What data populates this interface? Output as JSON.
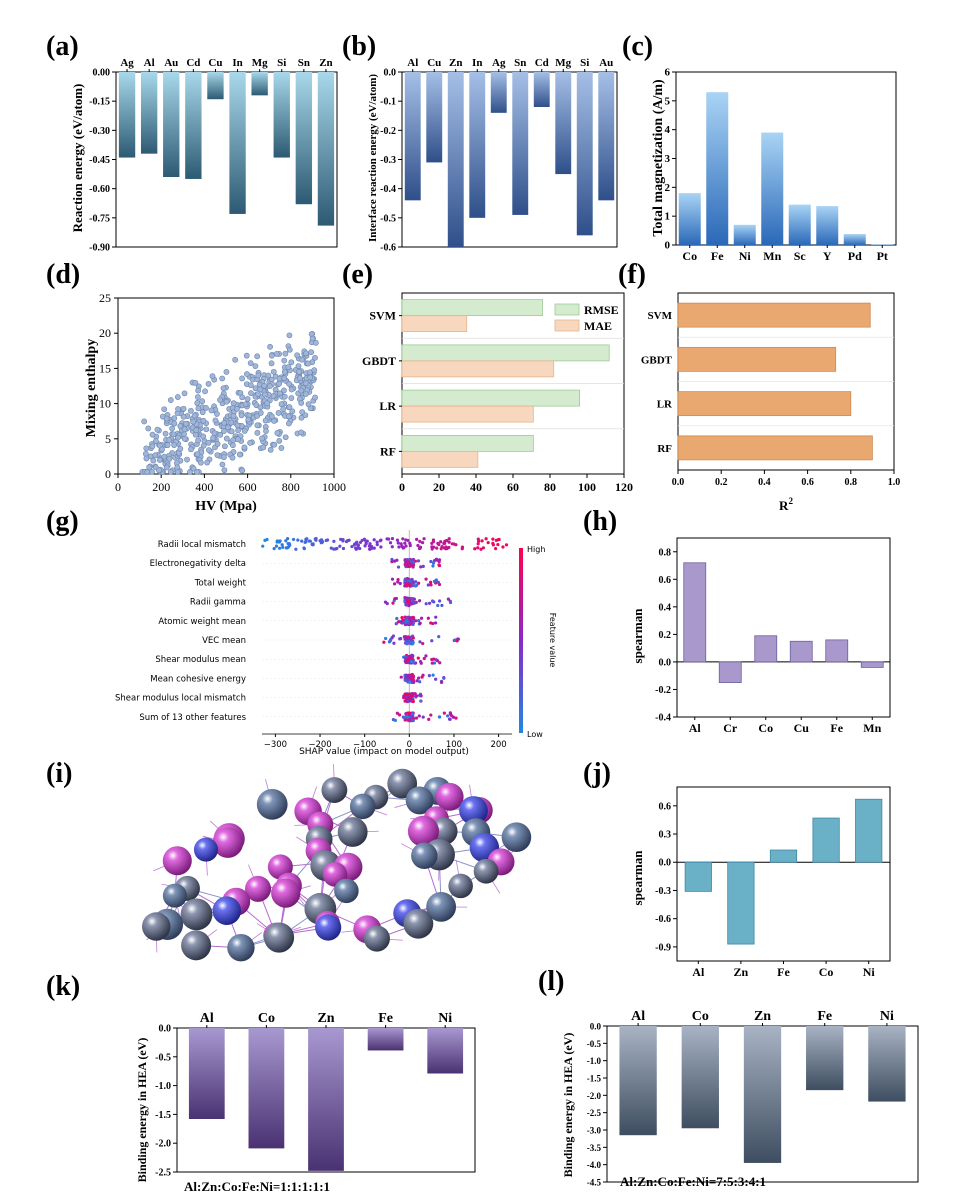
{
  "panel_labels": [
    "(a)",
    "(b)",
    "(c)",
    "(d)",
    "(e)",
    "(f)",
    "(g)",
    "(h)",
    "(i)",
    "(j)",
    "(k)",
    "(l)"
  ],
  "colors": {
    "a_top": "#a8d8ea",
    "a_bottom": "#2d5a73",
    "b_top": "#a5bfe6",
    "b_bottom": "#2f4f8a",
    "c_top": "#a9d4f5",
    "c_bottom": "#2a68b8",
    "d_point": "#9fb6d9",
    "d_edge": "#6d84ad",
    "e_rmse": "#d4ebcf",
    "e_mae": "#f7d8bf",
    "f_bar": "#e8a870",
    "f_edge": "#d08a50",
    "h_bar": "#a898cb",
    "j_bar": "#6ab0c7",
    "k_top": "#a898d0",
    "k_bottom": "#4a3272",
    "l_top": "#a8b3c4",
    "l_bottom": "#3e4d60",
    "shap_high": "#ff0052",
    "shap_low": "#1e88e5"
  },
  "chart_data": [
    {
      "id": "a",
      "type": "bar",
      "categories": [
        "Ag",
        "Al",
        "Au",
        "Cd",
        "Cu",
        "In",
        "Mg",
        "Si",
        "Sn",
        "Zn"
      ],
      "values": [
        -0.44,
        -0.42,
        -0.54,
        -0.55,
        -0.14,
        -0.73,
        -0.12,
        -0.44,
        -0.68,
        -0.79
      ],
      "ylabel": "Reaction energy (eV/atom)",
      "ylim": [
        -0.9,
        0.0
      ],
      "yticks": [
        "0.00",
        "-0.15",
        "-0.30",
        "-0.45",
        "-0.60",
        "-0.75",
        "-0.90"
      ]
    },
    {
      "id": "b",
      "type": "bar",
      "categories": [
        "Al",
        "Cu",
        "Zn",
        "In",
        "Ag",
        "Sn",
        "Cd",
        "Mg",
        "Si",
        "Au"
      ],
      "values": [
        -0.44,
        -0.31,
        -0.6,
        -0.5,
        -0.14,
        -0.49,
        -0.12,
        -0.35,
        -0.56,
        -0.44
      ],
      "ylabel": "Interface reaction energy (eV/atom)",
      "ylim": [
        -0.6,
        0.0
      ],
      "yticks": [
        "0.0",
        "-0.1",
        "-0.2",
        "-0.3",
        "-0.4",
        "-0.5",
        "-0.6"
      ]
    },
    {
      "id": "c",
      "type": "bar",
      "categories": [
        "Co",
        "Fe",
        "Ni",
        "Mn",
        "Sc",
        "Y",
        "Pd",
        "Pt"
      ],
      "values": [
        1.8,
        5.3,
        0.7,
        3.9,
        1.4,
        1.35,
        0.38,
        0.02
      ],
      "ylabel": "Total magnetization (A/m)",
      "ylim": [
        0,
        6
      ],
      "yticks": [
        "0",
        "1",
        "2",
        "3",
        "4",
        "5",
        "6"
      ]
    },
    {
      "id": "d",
      "type": "scatter",
      "xlabel": "HV (Mpa)",
      "ylabel": "Mixing enthalpy",
      "xlim": [
        0,
        1000
      ],
      "ylim": [
        0,
        25
      ],
      "xticks": [
        "0",
        "200",
        "400",
        "600",
        "800",
        "1000"
      ],
      "yticks": [
        "0",
        "5",
        "10",
        "15",
        "20",
        "25"
      ],
      "n_points": 520,
      "hv_range": [
        110,
        920
      ]
    },
    {
      "id": "e",
      "type": "bar",
      "orientation": "horizontal",
      "categories": [
        "SVM",
        "GBDT",
        "LR",
        "RF"
      ],
      "series": [
        {
          "name": "RMSE",
          "values": [
            76,
            112,
            96,
            71
          ]
        },
        {
          "name": "MAE",
          "values": [
            35,
            82,
            71,
            41
          ]
        }
      ],
      "xlim": [
        0,
        120
      ],
      "xticks": [
        "0",
        "20",
        "40",
        "60",
        "80",
        "100",
        "120"
      ]
    },
    {
      "id": "f",
      "type": "bar",
      "orientation": "horizontal",
      "categories": [
        "SVM",
        "GBDT",
        "LR",
        "RF"
      ],
      "values": [
        0.89,
        0.73,
        0.8,
        0.9
      ],
      "xlabel": "R",
      "xlabel_sup": "2",
      "xlim": [
        0,
        1.0
      ],
      "xticks": [
        "0.0",
        "0.2",
        "0.4",
        "0.6",
        "0.8",
        "1.0"
      ]
    },
    {
      "id": "g",
      "type": "scatter",
      "features": [
        "Radii local mismatch",
        "Electronegativity delta",
        "Total weight",
        "Radii gamma",
        "Atomic weight mean",
        "VEC mean",
        "Shear modulus mean",
        "Mean cohesive energy",
        "Shear modulus local mismatch",
        "Sum of 13 other features"
      ],
      "xlabel": "SHAP value (impact on model output)",
      "xlim": [
        -330,
        230
      ],
      "xticks": [
        "−300",
        "−200",
        "−100",
        "0",
        "100",
        "200"
      ],
      "colorbar": {
        "label": "Feature value",
        "high": "High",
        "low": "Low"
      }
    },
    {
      "id": "h",
      "type": "bar",
      "categories": [
        "Al",
        "Cr",
        "Co",
        "Cu",
        "Fe",
        "Mn"
      ],
      "values": [
        0.72,
        -0.15,
        0.19,
        0.15,
        0.16,
        -0.04
      ],
      "ylabel": "spearman",
      "ylim": [
        -0.4,
        0.9
      ],
      "yticks": [
        "0.8",
        "0.6",
        "0.4",
        "0.2",
        "0.0",
        "-0.2",
        "-0.4"
      ]
    },
    {
      "id": "j",
      "type": "bar",
      "categories": [
        "Al",
        "Zn",
        "Fe",
        "Co",
        "Ni"
      ],
      "values": [
        -0.31,
        -0.87,
        0.13,
        0.47,
        0.67
      ],
      "ylabel": "spearman",
      "ylim": [
        -1.05,
        0.8
      ],
      "yticks": [
        "0.6",
        "0.3",
        "0.0",
        "-0.3",
        "-0.6",
        "-0.9"
      ]
    },
    {
      "id": "k",
      "type": "bar",
      "categories": [
        "Al",
        "Co",
        "Zn",
        "Fe",
        "Ni"
      ],
      "values": [
        -1.58,
        -2.09,
        -2.48,
        -0.39,
        -0.79
      ],
      "ylabel": "Binding energy in HEA (eV)",
      "ylim": [
        -2.5,
        0.0
      ],
      "yticks": [
        "0.0",
        "-0.5",
        "-1.0",
        "-1.5",
        "-2.0",
        "-2.5"
      ],
      "annotation": "Al:Zn:Co:Fe:Ni=1:1:1:1:1"
    },
    {
      "id": "l",
      "type": "bar",
      "categories": [
        "Al",
        "Co",
        "Zn",
        "Fe",
        "Ni"
      ],
      "values": [
        -3.15,
        -2.95,
        -3.95,
        -1.85,
        -2.18
      ],
      "ylabel": "Binding energy in HEA (eV)",
      "ylim": [
        -4.5,
        0.0
      ],
      "yticks": [
        "0.0",
        "-0.5",
        "-1.0",
        "-1.5",
        "-2.0",
        "-2.5",
        "-3.0",
        "-3.5",
        "-4.0",
        "-4.5"
      ],
      "annotation": "Al:Zn:Co:Fe:Ni=7:5:3:4:1"
    }
  ]
}
